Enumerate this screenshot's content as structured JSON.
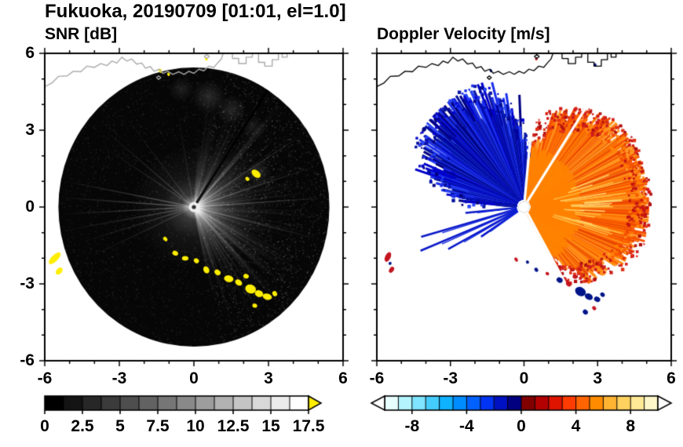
{
  "figure": {
    "title": "Fukuoka, 20190709 [01:01, el=1.0]",
    "site": "Fukuoka",
    "date": "20190709",
    "time": "01:01",
    "elevation": "el=1.0",
    "background": "#ffffff"
  },
  "chart_data": [
    {
      "type": "heatmap",
      "variant": "radar_ppi",
      "title": "SNR [dB]",
      "xlim": [
        -6,
        6
      ],
      "ylim": [
        -6,
        6
      ],
      "xticks": [
        -6,
        -3,
        0,
        3,
        6
      ],
      "xtick_labels": [
        "-6",
        "-3",
        "0",
        "3",
        "6"
      ],
      "yticks": [
        -6,
        -3,
        0,
        3,
        6
      ],
      "ytick_labels": [
        "-6",
        "-3",
        "0",
        "3",
        "6"
      ],
      "minor_tick_step": 1,
      "scan_radius": 5.45,
      "seed": 1907,
      "background_color": "#060606",
      "coast_color": "#aaaaaa",
      "clutter_color": "#ffee00",
      "colorbar": {
        "min": 0,
        "max": 17.5,
        "segments": 14,
        "tick_values": [
          0,
          2.5,
          5,
          7.5,
          10,
          12.5,
          15,
          17.5
        ],
        "tick_labels": [
          "0",
          "2.5",
          "5",
          "7.5",
          "10",
          "12.5",
          "15",
          "17.5"
        ],
        "palette": [
          "#000000",
          "#ffffff"
        ],
        "over_arrow_color": "#ffee00"
      },
      "bright_rays": [
        {
          "a": 169,
          "al": 0.3,
          "l": 1.0
        },
        {
          "a": 176,
          "al": 0.34,
          "l": 1.0
        },
        {
          "a": 183,
          "al": 0.3,
          "l": 1.0
        },
        {
          "a": 190,
          "al": 0.24,
          "l": 0.95
        },
        {
          "a": 197,
          "al": 0.2,
          "l": 0.9
        },
        {
          "a": 205,
          "al": 0.16,
          "l": 0.85
        },
        {
          "a": 140,
          "al": 0.2,
          "l": 0.9
        },
        {
          "a": 147,
          "al": 0.16,
          "l": 0.85
        },
        {
          "a": 128,
          "al": 0.12,
          "l": 0.8
        },
        {
          "a": 100,
          "al": 0.1,
          "l": 0.75
        },
        {
          "a": 33,
          "al": 0.3,
          "l": 1.0
        },
        {
          "a": 18,
          "al": 0.26,
          "l": 1.0
        },
        {
          "a": 4,
          "al": 0.3,
          "l": 1.0
        },
        {
          "a": -14,
          "al": 0.28,
          "l": 1.0
        },
        {
          "a": -30,
          "al": 0.24,
          "l": 0.95
        },
        {
          "a": -47,
          "al": 0.2,
          "l": 0.9
        },
        {
          "a": 47,
          "al": 0.22,
          "l": 0.95
        },
        {
          "a": 64,
          "al": 0.14,
          "l": 0.85
        }
      ],
      "dark_rays": [
        {
          "a": 57,
          "al": 0.88
        },
        {
          "a": 51.5,
          "al": 0.3
        }
      ],
      "haze": [
        [
          0.6,
          4.3,
          0.7,
          0.14
        ],
        [
          1.5,
          3.8,
          0.6,
          0.12
        ],
        [
          2.4,
          3.1,
          0.5,
          0.1
        ],
        [
          -0.5,
          4.6,
          0.5,
          0.1
        ],
        [
          2.6,
          1.3,
          0.5,
          0.12
        ]
      ],
      "clutter_blobs": [
        [
          -5.6,
          -2.0,
          0.13,
          0.3
        ],
        [
          -5.42,
          -2.5,
          0.11,
          0.16
        ],
        [
          -1.15,
          -1.25,
          0.1,
          0.07
        ],
        [
          -0.75,
          -1.8,
          0.12,
          0.09
        ],
        [
          -0.35,
          -2.0,
          0.13,
          0.09
        ],
        [
          0.1,
          -2.1,
          0.11,
          0.09
        ],
        [
          0.5,
          -2.45,
          0.15,
          0.11
        ],
        [
          0.95,
          -2.55,
          0.13,
          0.1
        ],
        [
          1.4,
          -2.8,
          0.19,
          0.13
        ],
        [
          1.8,
          -2.95,
          0.15,
          0.11
        ],
        [
          2.1,
          -2.7,
          0.11,
          0.09
        ],
        [
          2.28,
          -3.2,
          0.22,
          0.17
        ],
        [
          2.62,
          -3.38,
          0.17,
          0.13
        ],
        [
          2.95,
          -3.5,
          0.19,
          0.12
        ],
        [
          3.25,
          -3.38,
          0.11,
          0.09
        ],
        [
          2.45,
          -3.85,
          0.1,
          0.08
        ],
        [
          2.5,
          1.3,
          0.21,
          0.13
        ],
        [
          2.15,
          1.1,
          0.09,
          0.07
        ],
        [
          -1.35,
          5.32,
          0.09,
          0.06
        ],
        [
          -1.02,
          5.18,
          0.07,
          0.05
        ],
        [
          0.5,
          5.78,
          0.07,
          0.05
        ]
      ],
      "data_summary": {
        "features": [
          {
            "feature": "high-SNR fan east of radar",
            "sector_deg_from_east": [
              -75,
              85
            ],
            "snr_db": "5 to 17.5"
          },
          {
            "feature": "coastal ground-clutter arc (over-range, yellow)",
            "path_km": "from (-5.6,-2.0) through (0.5,-2.5) to (3.3,-3.4)",
            "snr_db": "> 17.5"
          },
          {
            "feature": "beam-blockage shadow ray",
            "azimuth_deg_from_east": 57,
            "snr_db": "~0"
          },
          {
            "feature": "bright point scatterer",
            "location_km": [
              2.5,
              1.3
            ],
            "snr_db": "> 17.5"
          }
        ]
      }
    },
    {
      "type": "heatmap",
      "variant": "radar_ppi",
      "title": "Doppler Velocity [m/s]",
      "xlim": [
        -6,
        6
      ],
      "ylim": [
        -6,
        6
      ],
      "xticks": [
        -6,
        -3,
        0,
        3,
        6
      ],
      "xtick_labels": [
        "-6",
        "-3",
        "0",
        "3",
        "6"
      ],
      "yticks": [
        -6,
        -3,
        0,
        3,
        6
      ],
      "ytick_labels": [],
      "minor_tick_step": 1,
      "scan_radius": 5.45,
      "seed": 709,
      "coast_color": "#000000",
      "colorbar": {
        "min": -10,
        "max": 10,
        "segments": 20,
        "tick_values": [
          -8,
          -4,
          0,
          4,
          8
        ],
        "tick_labels": [
          "-8",
          "-4",
          "0",
          "4",
          "8"
        ],
        "palette": [
          "#e8ffff",
          "#b3f4ff",
          "#7fe4ff",
          "#45ccff",
          "#0fb2ff",
          "#008cff",
          "#0061ff",
          "#0033f2",
          "#0011c2",
          "#000080",
          "#800000",
          "#b30000",
          "#de1400",
          "#ff3c00",
          "#ff6400",
          "#ff8c00",
          "#ffb432",
          "#ffd25f",
          "#ffe896",
          "#fdf6c8"
        ],
        "under_arrow_color": "#ffffff",
        "over_arrow_color": "#ffffff"
      },
      "outbound": {
        "a0": -60,
        "a1": 82,
        "base": 3.0,
        "peak": 1.9,
        "colors": [
          "#ff7f00",
          "#ff6400",
          "#ff8c14",
          "#f55000",
          "#e84600",
          "#ff9a28"
        ],
        "core_color": "#ff8200",
        "fringe_colors": [
          "#cf1b1b",
          "#b01010",
          "#e03214"
        ],
        "accent_colors": [
          "#ffb43c",
          "#ffcf66"
        ]
      },
      "inbound": {
        "a0": 86,
        "a1": 176,
        "base": 1.6,
        "peak": 3.0,
        "colors": [
          "#0a16a8",
          "#0000cd",
          "#1b2fe8",
          "#000080",
          "#2743f5",
          "#000f9e"
        ]
      },
      "inbound_rays": [
        {
          "a": 185.5,
          "r": 2.4
        },
        {
          "a": 195.5,
          "r": 4.35
        },
        {
          "a": 202,
          "r": 4.55
        },
        {
          "a": 208,
          "r": 3.5
        },
        {
          "a": 213.5,
          "r": 2.1
        }
      ],
      "gap_rays": [
        57,
        84.5,
        -60.5
      ],
      "clutter_blobs": [
        [
          1.45,
          -2.85,
          0.13,
          0.1,
          "#001489"
        ],
        [
          1.82,
          -3.0,
          0.12,
          0.09,
          "#c41420"
        ],
        [
          2.08,
          -2.72,
          0.1,
          0.08,
          "#c41420"
        ],
        [
          2.3,
          -3.3,
          0.23,
          0.17,
          "#001489"
        ],
        [
          2.64,
          -3.5,
          0.17,
          0.12,
          "#001489"
        ],
        [
          2.98,
          -3.6,
          0.13,
          0.1,
          "#001489"
        ],
        [
          2.5,
          -4.1,
          0.11,
          0.09,
          "#001489"
        ],
        [
          2.86,
          -3.95,
          0.09,
          0.07,
          "#c41420"
        ],
        [
          3.2,
          -3.42,
          0.1,
          0.08,
          "#001489"
        ],
        [
          -5.55,
          -1.95,
          0.11,
          0.2,
          "#c41420"
        ],
        [
          -5.4,
          -2.45,
          0.09,
          0.13,
          "#c41420"
        ],
        [
          -5.46,
          -2.2,
          0.06,
          0.06,
          "#001489"
        ],
        [
          -0.32,
          -2.05,
          0.09,
          0.06,
          "#c41420"
        ],
        [
          0.14,
          -2.15,
          0.07,
          0.06,
          "#001489"
        ],
        [
          0.5,
          -2.45,
          0.09,
          0.07,
          "#001489"
        ],
        [
          0.95,
          -2.6,
          0.08,
          0.06,
          "#c41420"
        ],
        [
          -1.35,
          5.32,
          0.07,
          0.05,
          "#001489"
        ],
        [
          0.5,
          5.78,
          0.06,
          0.05,
          "#c41420"
        ],
        [
          2.9,
          5.55,
          0.07,
          0.05,
          "#001489"
        ]
      ],
      "data_summary": {
        "features": [
          {
            "feature": "inbound flow (toward radar, blue)",
            "sector_deg_from_east": [
              86,
              176
            ],
            "velocity_ms": "-4 to -10"
          },
          {
            "feature": "outbound flow (away from radar, orange/red)",
            "sector_deg_from_east": [
              -60,
              82
            ],
            "velocity_ms": "+3 to +8"
          },
          {
            "feature": "narrow inbound rays to SW",
            "azimuths_deg_from_east": [
              186,
              196,
              202,
              208,
              214
            ]
          },
          {
            "feature": "clutter echoes (mixed navy/red blobs)",
            "locations_km": [
              [
                2.3,
                -3.3
              ],
              [
                -5.5,
                -2.2
              ],
              [
                0.5,
                -2.5
              ]
            ]
          }
        ]
      }
    }
  ],
  "coastline": {
    "main": [
      [
        -6.0,
        4.7
      ],
      [
        -5.7,
        4.85
      ],
      [
        -5.45,
        5.1
      ],
      [
        -5.1,
        5.12
      ],
      [
        -4.85,
        5.3
      ],
      [
        -4.55,
        5.28
      ],
      [
        -4.3,
        5.5
      ],
      [
        -4.0,
        5.45
      ],
      [
        -3.75,
        5.6
      ],
      [
        -3.5,
        5.52
      ],
      [
        -3.3,
        5.7
      ],
      [
        -3.1,
        5.62
      ],
      [
        -2.9,
        5.85
      ],
      [
        -2.7,
        5.7
      ],
      [
        -2.5,
        5.78
      ],
      [
        -2.3,
        5.58
      ],
      [
        -2.1,
        5.62
      ],
      [
        -1.95,
        5.42
      ],
      [
        -1.75,
        5.48
      ],
      [
        -1.6,
        5.3
      ],
      [
        -1.4,
        5.38
      ],
      [
        -1.25,
        5.22
      ],
      [
        -1.05,
        5.3
      ],
      [
        -0.85,
        5.18
      ],
      [
        -0.6,
        5.28
      ],
      [
        -0.4,
        5.18
      ],
      [
        -0.2,
        5.3
      ],
      [
        0.0,
        5.22
      ],
      [
        0.2,
        5.38
      ],
      [
        0.4,
        5.32
      ],
      [
        0.6,
        5.5
      ],
      [
        0.8,
        5.45
      ],
      [
        0.95,
        5.62
      ],
      [
        1.1,
        5.78
      ],
      [
        1.2,
        6.05
      ]
    ],
    "blocks": [
      [
        [
          1.55,
          6.05
        ],
        [
          1.55,
          5.8
        ],
        [
          1.8,
          5.8
        ],
        [
          1.8,
          5.6
        ],
        [
          2.1,
          5.6
        ],
        [
          2.1,
          5.85
        ],
        [
          2.35,
          5.85
        ],
        [
          2.35,
          6.05
        ]
      ],
      [
        [
          2.6,
          6.05
        ],
        [
          2.6,
          5.65
        ],
        [
          2.85,
          5.65
        ],
        [
          2.85,
          5.5
        ],
        [
          3.15,
          5.5
        ],
        [
          3.15,
          5.75
        ],
        [
          3.4,
          5.75
        ],
        [
          3.4,
          6.05
        ]
      ],
      [
        [
          3.55,
          6.05
        ],
        [
          3.55,
          5.85
        ],
        [
          3.75,
          5.85
        ],
        [
          3.75,
          6.05
        ]
      ]
    ],
    "islands": [
      [
        [
          0.42,
          5.88
        ],
        [
          0.52,
          5.95
        ],
        [
          0.62,
          5.88
        ],
        [
          0.52,
          5.8
        ]
      ],
      [
        [
          -1.5,
          5.05
        ],
        [
          -1.42,
          5.12
        ],
        [
          -1.33,
          5.05
        ],
        [
          -1.42,
          4.98
        ]
      ]
    ]
  }
}
